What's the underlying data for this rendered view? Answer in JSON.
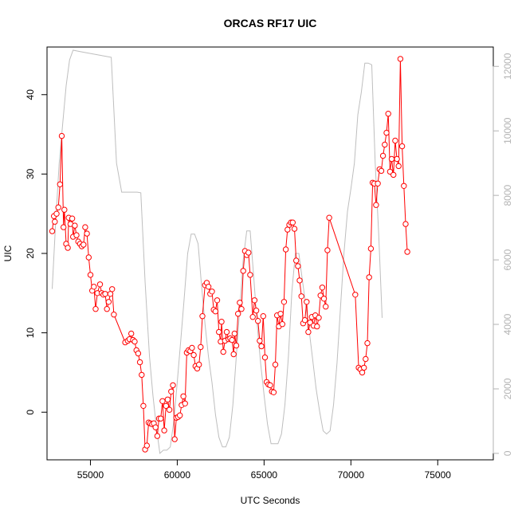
{
  "chart_data": {
    "type": "line",
    "title": "ORCAS RF17 UIC",
    "xlabel": "UTC Seconds",
    "ylabel": "UIC",
    "xlim": [
      52500,
      78200
    ],
    "ylim": [
      -6,
      46
    ],
    "y2lim": [
      -200,
      12600
    ],
    "xticks": [
      55000,
      60000,
      65000,
      70000,
      75000
    ],
    "yticks": [
      0,
      10,
      20,
      30,
      40
    ],
    "y2ticks": [
      0,
      2000,
      4000,
      6000,
      8000,
      10000,
      12000
    ],
    "colors": {
      "uic": "#ff0000",
      "altitude": "#bebebe",
      "axis": "#000000",
      "axis2": "#b3b3b3"
    },
    "series": [
      {
        "values": [
          [
            52800,
            22.8
          ],
          [
            52900,
            24.7
          ],
          [
            52950,
            24.0
          ],
          [
            53050,
            25.0
          ],
          [
            53150,
            25.8
          ],
          [
            53250,
            28.7
          ],
          [
            53350,
            34.8
          ],
          [
            53450,
            23.3
          ],
          [
            53500,
            25.5
          ],
          [
            53600,
            21.2
          ],
          [
            53700,
            20.7
          ],
          [
            53750,
            24.5
          ],
          [
            53850,
            23.7
          ],
          [
            53950,
            24.4
          ],
          [
            54000,
            22.1
          ],
          [
            54100,
            23.5
          ],
          [
            54200,
            22.3
          ],
          [
            54300,
            21.5
          ],
          [
            54400,
            21.2
          ],
          [
            54500,
            20.9
          ],
          [
            54600,
            21.1
          ],
          [
            54700,
            23.3
          ],
          [
            54800,
            22.5
          ],
          [
            54900,
            19.5
          ],
          [
            55000,
            17.3
          ],
          [
            55100,
            15.3
          ],
          [
            55200,
            15.8
          ],
          [
            55300,
            13.0
          ],
          [
            55400,
            15.0
          ],
          [
            55550,
            16.1
          ],
          [
            55650,
            15.0
          ],
          [
            55750,
            14.8
          ],
          [
            55850,
            14.9
          ],
          [
            55950,
            13.0
          ],
          [
            56050,
            13.9
          ],
          [
            56150,
            14.9
          ],
          [
            56250,
            15.5
          ],
          [
            56350,
            12.3
          ],
          [
            57000,
            8.8
          ],
          [
            57150,
            9.0
          ],
          [
            57250,
            9.2
          ],
          [
            57350,
            9.9
          ],
          [
            57450,
            9.1
          ],
          [
            57550,
            8.9
          ],
          [
            57650,
            7.8
          ],
          [
            57750,
            7.4
          ],
          [
            57850,
            6.3
          ],
          [
            57950,
            4.7
          ],
          [
            58050,
            0.8
          ],
          [
            58150,
            -4.7
          ],
          [
            58250,
            -4.2
          ],
          [
            58350,
            -1.3
          ],
          [
            58450,
            -1.4
          ],
          [
            58550,
            -1.5
          ],
          [
            58650,
            -1.4
          ],
          [
            58750,
            -1.9
          ],
          [
            58850,
            -3.0
          ],
          [
            58950,
            -0.8
          ],
          [
            59050,
            -0.8
          ],
          [
            59150,
            1.4
          ],
          [
            59250,
            -2.3
          ],
          [
            59350,
            0.8
          ],
          [
            59450,
            1.6
          ],
          [
            59550,
            0.3
          ],
          [
            59650,
            2.6
          ],
          [
            59750,
            3.4
          ],
          [
            59850,
            -3.4
          ],
          [
            59950,
            -0.7
          ],
          [
            60050,
            -0.6
          ],
          [
            60150,
            -0.4
          ],
          [
            60250,
            0.9
          ],
          [
            60350,
            2.0
          ],
          [
            60450,
            1.1
          ],
          [
            60550,
            7.5
          ],
          [
            60650,
            7.8
          ],
          [
            60750,
            7.7
          ],
          [
            60850,
            8.1
          ],
          [
            60950,
            7.2
          ],
          [
            61050,
            5.8
          ],
          [
            61150,
            5.5
          ],
          [
            61250,
            6.0
          ],
          [
            61350,
            8.2
          ],
          [
            61450,
            12.1
          ],
          [
            61600,
            16.0
          ],
          [
            61700,
            16.3
          ],
          [
            61800,
            15.8
          ],
          [
            61900,
            14.9
          ],
          [
            62000,
            15.2
          ],
          [
            62100,
            12.9
          ],
          [
            62200,
            12.7
          ],
          [
            62300,
            14.1
          ],
          [
            62400,
            10.1
          ],
          [
            62500,
            8.9
          ],
          [
            62550,
            11.4
          ],
          [
            62650,
            7.6
          ],
          [
            62750,
            9.0
          ],
          [
            62850,
            10.1
          ],
          [
            62950,
            9.2
          ],
          [
            63050,
            9.3
          ],
          [
            63150,
            9.1
          ],
          [
            63250,
            7.3
          ],
          [
            63300,
            9.9
          ],
          [
            63400,
            8.4
          ],
          [
            63500,
            12.4
          ],
          [
            63600,
            13.8
          ],
          [
            63700,
            13.0
          ],
          [
            63800,
            17.8
          ],
          [
            63900,
            20.3
          ],
          [
            64000,
            19.8
          ],
          [
            64100,
            20.1
          ],
          [
            64200,
            17.3
          ],
          [
            64350,
            12.0
          ],
          [
            64450,
            14.1
          ],
          [
            64550,
            12.8
          ],
          [
            64650,
            11.5
          ],
          [
            64750,
            9.0
          ],
          [
            64850,
            8.3
          ],
          [
            64950,
            12.1
          ],
          [
            65050,
            6.9
          ],
          [
            65150,
            3.8
          ],
          [
            65250,
            3.5
          ],
          [
            65350,
            3.4
          ],
          [
            65450,
            2.6
          ],
          [
            65550,
            2.5
          ],
          [
            65650,
            6.0
          ],
          [
            65750,
            12.2
          ],
          [
            65850,
            10.8
          ],
          [
            65950,
            12.4
          ],
          [
            66050,
            11.1
          ],
          [
            66150,
            13.9
          ],
          [
            66250,
            20.5
          ],
          [
            66350,
            23.0
          ],
          [
            66450,
            23.6
          ],
          [
            66550,
            23.9
          ],
          [
            66650,
            23.9
          ],
          [
            66750,
            23.1
          ],
          [
            66850,
            19.1
          ],
          [
            66950,
            18.4
          ],
          [
            67050,
            16.6
          ],
          [
            67150,
            14.6
          ],
          [
            67250,
            11.2
          ],
          [
            67350,
            11.6
          ],
          [
            67450,
            13.9
          ],
          [
            67550,
            10.1
          ],
          [
            67650,
            11.3
          ],
          [
            67750,
            12.0
          ],
          [
            67850,
            10.9
          ],
          [
            67950,
            12.2
          ],
          [
            68050,
            10.8
          ],
          [
            68150,
            11.9
          ],
          [
            68250,
            14.7
          ],
          [
            68350,
            15.7
          ],
          [
            68450,
            14.3
          ],
          [
            68550,
            13.3
          ],
          [
            68650,
            20.4
          ],
          [
            68750,
            24.5
          ],
          [
            70250,
            14.8
          ],
          [
            70450,
            5.6
          ],
          [
            70550,
            5.4
          ],
          [
            70650,
            5.0
          ],
          [
            70750,
            5.6
          ],
          [
            70850,
            6.7
          ],
          [
            70950,
            8.7
          ],
          [
            71050,
            17.0
          ],
          [
            71150,
            20.6
          ],
          [
            71250,
            28.9
          ],
          [
            71350,
            28.8
          ],
          [
            71450,
            26.1
          ],
          [
            71550,
            28.8
          ],
          [
            71650,
            30.6
          ],
          [
            71750,
            30.4
          ],
          [
            71850,
            32.3
          ],
          [
            71950,
            33.7
          ],
          [
            72050,
            35.2
          ],
          [
            72150,
            37.6
          ],
          [
            72250,
            30.3
          ],
          [
            72350,
            31.9
          ],
          [
            72450,
            29.9
          ],
          [
            72550,
            34.2
          ],
          [
            72650,
            31.9
          ],
          [
            72750,
            31.0
          ],
          [
            72850,
            44.5
          ],
          [
            72950,
            33.5
          ],
          [
            73050,
            28.5
          ],
          [
            73150,
            23.7
          ],
          [
            73250,
            20.2
          ]
        ]
      },
      {
        "values": [
          [
            52800,
            5100
          ],
          [
            53000,
            7200
          ],
          [
            53200,
            9000
          ],
          [
            53400,
            10200
          ],
          [
            53600,
            11400
          ],
          [
            53800,
            12200
          ],
          [
            54000,
            12500
          ],
          [
            54500,
            12450
          ],
          [
            55000,
            12400
          ],
          [
            55500,
            12350
          ],
          [
            56000,
            12300
          ],
          [
            56200,
            12280
          ],
          [
            56500,
            9000
          ],
          [
            56800,
            8100
          ],
          [
            57200,
            8100
          ],
          [
            57700,
            8100
          ],
          [
            57900,
            8080
          ],
          [
            58150,
            5300
          ],
          [
            58400,
            3000
          ],
          [
            58600,
            1800
          ],
          [
            58800,
            800
          ],
          [
            59000,
            0
          ],
          [
            59200,
            100
          ],
          [
            59400,
            100
          ],
          [
            59600,
            200
          ],
          [
            59800,
            1000
          ],
          [
            60000,
            2200
          ],
          [
            60200,
            3500
          ],
          [
            60400,
            4800
          ],
          [
            60600,
            6200
          ],
          [
            60800,
            6800
          ],
          [
            61000,
            6800
          ],
          [
            61200,
            6500
          ],
          [
            61400,
            5200
          ],
          [
            61600,
            4000
          ],
          [
            61800,
            3000
          ],
          [
            62000,
            2200
          ],
          [
            62200,
            1200
          ],
          [
            62400,
            500
          ],
          [
            62600,
            200
          ],
          [
            62800,
            200
          ],
          [
            63000,
            500
          ],
          [
            63200,
            1500
          ],
          [
            63400,
            3000
          ],
          [
            63600,
            4500
          ],
          [
            63800,
            6000
          ],
          [
            64000,
            6900
          ],
          [
            64200,
            6900
          ],
          [
            64400,
            5500
          ],
          [
            64600,
            4000
          ],
          [
            64800,
            2800
          ],
          [
            65000,
            1800
          ],
          [
            65200,
            900
          ],
          [
            65400,
            300
          ],
          [
            65600,
            300
          ],
          [
            65800,
            300
          ],
          [
            66000,
            600
          ],
          [
            66200,
            1500
          ],
          [
            66400,
            3000
          ],
          [
            66600,
            5000
          ],
          [
            66800,
            6200
          ],
          [
            67000,
            6200
          ],
          [
            67200,
            5400
          ],
          [
            67400,
            4600
          ],
          [
            67600,
            3800
          ],
          [
            67800,
            2900
          ],
          [
            68000,
            2000
          ],
          [
            68200,
            1300
          ],
          [
            68400,
            700
          ],
          [
            68600,
            600
          ],
          [
            68800,
            700
          ],
          [
            69000,
            1500
          ],
          [
            69200,
            2800
          ],
          [
            69400,
            4500
          ],
          [
            69600,
            6200
          ],
          [
            69800,
            7500
          ],
          [
            70000,
            8200
          ],
          [
            70200,
            9000
          ],
          [
            70400,
            10500
          ],
          [
            70600,
            11200
          ],
          [
            70800,
            12100
          ],
          [
            71000,
            12100
          ],
          [
            71200,
            12050
          ],
          [
            71400,
            9000
          ],
          [
            71600,
            6800
          ],
          [
            71800,
            4200
          ]
        ]
      }
    ]
  }
}
